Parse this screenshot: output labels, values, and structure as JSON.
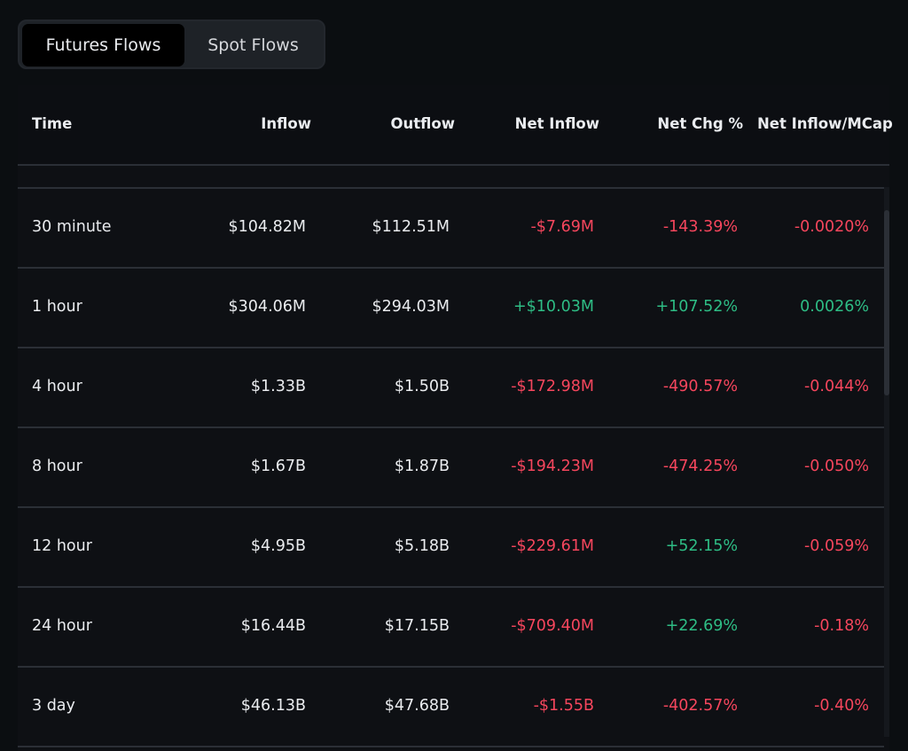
{
  "tabs": [
    {
      "label": "Futures Flows",
      "active": true
    },
    {
      "label": "Spot Flows",
      "active": false
    }
  ],
  "columns": [
    "Time",
    "Inflow",
    "Outflow",
    "Net Inflow",
    "Net Chg %",
    "Net Inflow/MCap"
  ],
  "colors": {
    "negative": "#f6465d",
    "positive": "#2ebd85"
  },
  "rows": [
    {
      "time": "30 minute",
      "inflow": "$104.82M",
      "outflow": "$112.51M",
      "net_inflow": "-$7.69M",
      "net_chg": "-143.39%",
      "mcap": "-0.0020%"
    },
    {
      "time": "1 hour",
      "inflow": "$304.06M",
      "outflow": "$294.03M",
      "net_inflow": "+$10.03M",
      "net_chg": "+107.52%",
      "mcap": "0.0026%"
    },
    {
      "time": "4 hour",
      "inflow": "$1.33B",
      "outflow": "$1.50B",
      "net_inflow": "-$172.98M",
      "net_chg": "-490.57%",
      "mcap": "-0.044%"
    },
    {
      "time": "8 hour",
      "inflow": "$1.67B",
      "outflow": "$1.87B",
      "net_inflow": "-$194.23M",
      "net_chg": "-474.25%",
      "mcap": "-0.050%"
    },
    {
      "time": "12 hour",
      "inflow": "$4.95B",
      "outflow": "$5.18B",
      "net_inflow": "-$229.61M",
      "net_chg": "+52.15%",
      "mcap": "-0.059%"
    },
    {
      "time": "24 hour",
      "inflow": "$16.44B",
      "outflow": "$17.15B",
      "net_inflow": "-$709.40M",
      "net_chg": "+22.69%",
      "mcap": "-0.18%"
    },
    {
      "time": "3 day",
      "inflow": "$46.13B",
      "outflow": "$47.68B",
      "net_inflow": "-$1.55B",
      "net_chg": "-402.57%",
      "mcap": "-0.40%"
    }
  ]
}
